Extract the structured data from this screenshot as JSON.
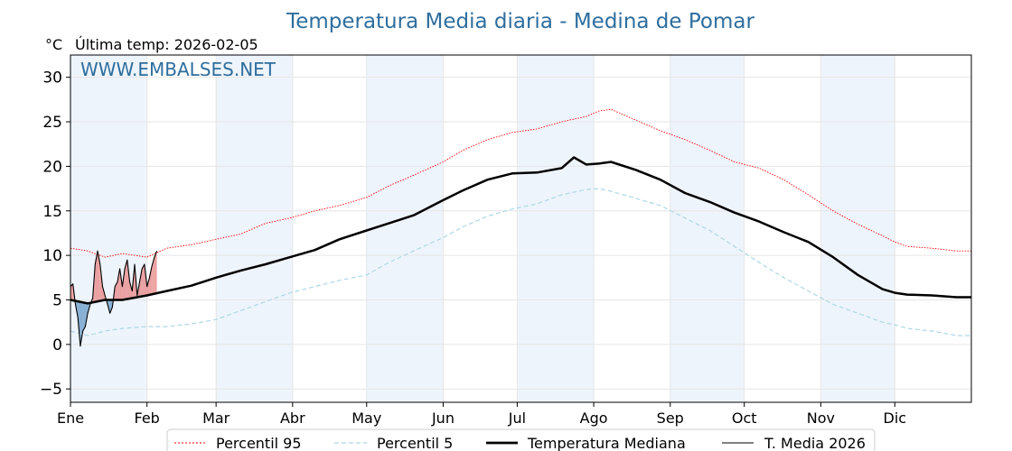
{
  "chart_data": {
    "type": "line",
    "title": "Temperatura Media diaria - Medina de Pomar",
    "subtitle": "Última temp: 2026-02-05",
    "unit_label": "°C",
    "watermark": "WWW.EMBALSES.NET",
    "xlim": [
      1,
      366
    ],
    "ylim": [
      -6.5,
      32.5
    ],
    "y_ticks": [
      -5,
      0,
      5,
      10,
      15,
      20,
      25,
      30
    ],
    "y_tick_labels": [
      "−5",
      "0",
      "5",
      "10",
      "15",
      "20",
      "25",
      "30"
    ],
    "month_ticks": [
      {
        "label": "Ene",
        "day": 1
      },
      {
        "label": "Feb",
        "day": 32
      },
      {
        "label": "Mar",
        "day": 60
      },
      {
        "label": "Abr",
        "day": 91
      },
      {
        "label": "May",
        "day": 121
      },
      {
        "label": "Jun",
        "day": 152
      },
      {
        "label": "Jul",
        "day": 182
      },
      {
        "label": "Ago",
        "day": 213
      },
      {
        "label": "Sep",
        "day": 244
      },
      {
        "label": "Oct",
        "day": 274
      },
      {
        "label": "Nov",
        "day": 305
      },
      {
        "label": "Dic",
        "day": 335
      }
    ],
    "shaded_months": [
      [
        1,
        32
      ],
      [
        60,
        91
      ],
      [
        121,
        152
      ],
      [
        182,
        213
      ],
      [
        244,
        274
      ],
      [
        305,
        335
      ]
    ],
    "grid": true,
    "legend_position": "bottom-center",
    "series": [
      {
        "name": "Percentil 95",
        "style": "dotted",
        "color": "#ff0000",
        "x": [
          1,
          8,
          15,
          22,
          32,
          40,
          50,
          60,
          70,
          80,
          90,
          100,
          110,
          121,
          130,
          140,
          152,
          160,
          170,
          180,
          190,
          200,
          210,
          215,
          220,
          230,
          240,
          250,
          260,
          270,
          280,
          290,
          300,
          310,
          320,
          330,
          335,
          340,
          350,
          360,
          366
        ],
        "y": [
          10.8,
          10.5,
          9.8,
          10.2,
          9.8,
          10.8,
          11.2,
          11.8,
          12.4,
          13.6,
          14.2,
          15.0,
          15.6,
          16.5,
          17.8,
          19.0,
          20.5,
          21.8,
          23.0,
          23.8,
          24.2,
          25.0,
          25.6,
          26.2,
          26.4,
          25.2,
          24.0,
          23.0,
          21.8,
          20.5,
          19.8,
          18.5,
          16.8,
          15.0,
          13.5,
          12.2,
          11.5,
          11.0,
          10.8,
          10.5,
          10.5
        ]
      },
      {
        "name": "Percentil 5",
        "style": "dashed",
        "color": "#add8e6",
        "x": [
          1,
          8,
          15,
          22,
          32,
          40,
          50,
          60,
          70,
          80,
          90,
          100,
          110,
          121,
          130,
          140,
          152,
          160,
          170,
          180,
          190,
          200,
          210,
          215,
          220,
          230,
          240,
          250,
          260,
          270,
          280,
          290,
          300,
          310,
          320,
          330,
          335,
          340,
          350,
          360,
          366
        ],
        "y": [
          1.5,
          1.0,
          1.5,
          1.8,
          2.0,
          2.0,
          2.3,
          2.8,
          3.8,
          4.8,
          5.8,
          6.5,
          7.2,
          7.8,
          9.2,
          10.5,
          12.0,
          13.2,
          14.4,
          15.2,
          15.8,
          16.8,
          17.4,
          17.5,
          17.2,
          16.4,
          15.6,
          14.2,
          12.8,
          11.0,
          9.2,
          7.5,
          6.0,
          4.5,
          3.5,
          2.5,
          2.2,
          1.8,
          1.5,
          1.0,
          1.0
        ]
      },
      {
        "name": "Temperatura Mediana",
        "style": "solid-thick",
        "color": "#000000",
        "x": [
          1,
          8,
          15,
          22,
          32,
          40,
          50,
          60,
          70,
          80,
          90,
          100,
          110,
          121,
          130,
          140,
          152,
          160,
          170,
          180,
          190,
          200,
          205,
          210,
          215,
          220,
          230,
          240,
          250,
          260,
          270,
          280,
          290,
          300,
          310,
          320,
          330,
          335,
          340,
          350,
          360,
          366
        ],
        "y": [
          5.0,
          4.6,
          5.0,
          5.0,
          5.5,
          6.0,
          6.6,
          7.5,
          8.3,
          9.0,
          9.8,
          10.6,
          11.8,
          12.8,
          13.6,
          14.5,
          16.2,
          17.3,
          18.5,
          19.2,
          19.3,
          19.8,
          21.0,
          20.2,
          20.3,
          20.5,
          19.6,
          18.5,
          17.0,
          16.0,
          14.8,
          13.8,
          12.6,
          11.5,
          9.8,
          7.8,
          6.2,
          5.8,
          5.6,
          5.5,
          5.3,
          5.3
        ]
      },
      {
        "name": "T. Media 2026",
        "style": "solid-thin",
        "color": "#000000",
        "x": [
          1,
          2,
          3,
          4,
          5,
          6,
          7,
          8,
          9,
          10,
          11,
          12,
          13,
          14,
          15,
          16,
          17,
          18,
          19,
          20,
          21,
          22,
          23,
          24,
          25,
          26,
          27,
          28,
          29,
          30,
          31,
          32,
          33,
          34,
          35,
          36
        ],
        "y": [
          6.5,
          6.8,
          4.5,
          3.0,
          -0.2,
          1.5,
          2.0,
          3.5,
          4.5,
          5.2,
          9.0,
          10.5,
          9.0,
          6.5,
          5.5,
          4.5,
          3.5,
          4.2,
          6.5,
          7.0,
          8.5,
          6.5,
          8.5,
          9.5,
          7.0,
          6.0,
          9.0,
          5.5,
          7.0,
          8.5,
          9.0,
          6.5,
          7.5,
          8.8,
          9.8,
          10.5
        ]
      }
    ]
  },
  "legend": {
    "items": [
      "Percentil 95",
      "Percentil 5",
      "Temperatura Mediana",
      "T. Media 2026"
    ]
  },
  "colors": {
    "title": "#2e6e9e",
    "watermark": "#2e6e9e",
    "shade": "#eef4fb",
    "above_fill": "#e88b8b",
    "below_fill": "#6b9ec9"
  }
}
